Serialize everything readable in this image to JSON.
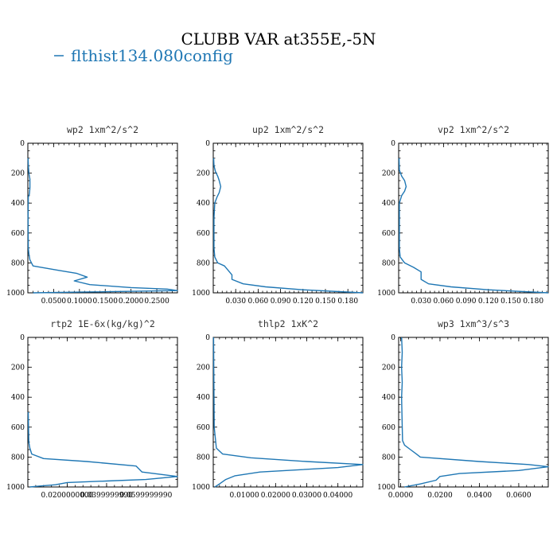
{
  "figure": {
    "title": "CLUBB VAR at355E,-5N",
    "legend": {
      "label": "flthist134.080config",
      "color": "#1f77b4"
    }
  },
  "chart_data": [
    {
      "type": "line",
      "title": "wp2  1xm^2/s^2",
      "xlabel": "",
      "ylabel": "",
      "xlim": [
        0,
        0.29
      ],
      "ylim": [
        1000,
        0
      ],
      "xticks": [
        0.05,
        0.1,
        0.15,
        0.2,
        0.25
      ],
      "xtick_labels": [
        "0.0500",
        "0.1000",
        "0.1500",
        "0.2000",
        "0.2500"
      ],
      "yticks": [
        0,
        200,
        400,
        600,
        800,
        1000
      ],
      "ytick_labels": [
        "0",
        "200",
        "400",
        "600",
        "800",
        "1000"
      ],
      "series": [
        {
          "color": "#1f77b4",
          "x": [
            0.0005,
            0.001,
            0.002,
            0.004,
            0.004,
            0.004,
            0.003,
            0.001,
            0.0005,
            0.001,
            0.002,
            0.004,
            0.01,
            0.06,
            0.095,
            0.115,
            0.09,
            0.12,
            0.2,
            0.27,
            0.29,
            0.1,
            0.01
          ],
          "y": [
            100,
            150,
            200,
            240,
            270,
            300,
            340,
            360,
            500,
            700,
            740,
            780,
            820,
            850,
            870,
            895,
            920,
            945,
            965,
            975,
            985,
            995,
            1000
          ]
        }
      ]
    },
    {
      "type": "line",
      "title": "up2  1xm^2/s^2",
      "xlabel": "",
      "ylabel": "",
      "xlim": [
        0,
        0.2
      ],
      "ylim": [
        1000,
        0
      ],
      "xticks": [
        0.03,
        0.06,
        0.09,
        0.12,
        0.15,
        0.18
      ],
      "xtick_labels": [
        "0.030",
        "0.060",
        "0.090",
        "0.120",
        "0.150",
        "0.180"
      ],
      "yticks": [
        0,
        200,
        400,
        600,
        800,
        1000
      ],
      "ytick_labels": [
        "0",
        "200",
        "400",
        "600",
        "800",
        "1000"
      ],
      "series": [
        {
          "color": "#1f77b4",
          "x": [
            0.0005,
            0.001,
            0.003,
            0.006,
            0.008,
            0.01,
            0.008,
            0.005,
            0.002,
            0.001,
            0.001,
            0.002,
            0.006,
            0.015,
            0.02,
            0.025,
            0.025,
            0.04,
            0.07,
            0.12,
            0.2
          ],
          "y": [
            100,
            150,
            190,
            220,
            250,
            290,
            330,
            360,
            400,
            500,
            700,
            760,
            800,
            820,
            850,
            880,
            910,
            940,
            960,
            980,
            1000
          ]
        }
      ]
    },
    {
      "type": "line",
      "title": "vp2  1xm^2/s^2",
      "xlabel": "",
      "ylabel": "",
      "xlim": [
        0,
        0.2
      ],
      "ylim": [
        1000,
        0
      ],
      "xticks": [
        0.03,
        0.06,
        0.09,
        0.12,
        0.15,
        0.18
      ],
      "xtick_labels": [
        "0.030",
        "0.060",
        "0.090",
        "0.120",
        "0.150",
        "0.180"
      ],
      "yticks": [
        0,
        200,
        400,
        600,
        800,
        1000
      ],
      "ytick_labels": [
        "0",
        "200",
        "400",
        "600",
        "800",
        "1000"
      ],
      "series": [
        {
          "color": "#1f77b4",
          "x": [
            0.0005,
            0.001,
            0.004,
            0.008,
            0.01,
            0.008,
            0.004,
            0.001,
            0.001,
            0.002,
            0.008,
            0.02,
            0.03,
            0.03,
            0.04,
            0.07,
            0.12,
            0.2
          ],
          "y": [
            100,
            180,
            220,
            250,
            290,
            320,
            350,
            400,
            700,
            760,
            800,
            830,
            860,
            910,
            940,
            960,
            980,
            1000
          ]
        }
      ]
    },
    {
      "type": "line",
      "title": "rtp2  1E-6x(kg/kg)^2",
      "xlabel": "",
      "ylabel": "",
      "xlim": [
        0,
        0.076
      ],
      "ylim": [
        1000,
        0
      ],
      "xticks": [
        0.02,
        0.04,
        0.06
      ],
      "xtick_labels": [
        "0.0200000000",
        "0.0399999990",
        "0.0599999990"
      ],
      "yticks": [
        0,
        200,
        400,
        600,
        800,
        1000
      ],
      "ytick_labels": [
        "0",
        "200",
        "400",
        "600",
        "800",
        "1000"
      ],
      "series": [
        {
          "color": "#1f77b4",
          "x": [
            0.0002,
            0.0005,
            0.001,
            0.002,
            0.008,
            0.03,
            0.055,
            0.058,
            0.076,
            0.06,
            0.04,
            0.02,
            0.014,
            0.005,
            0.001
          ],
          "y": [
            500,
            700,
            740,
            780,
            810,
            830,
            860,
            900,
            930,
            950,
            960,
            970,
            985,
            995,
            1000
          ]
        }
      ]
    },
    {
      "type": "line",
      "title": "thlp2  1xK^2",
      "xlabel": "",
      "ylabel": "",
      "xlim": [
        0,
        0.048
      ],
      "ylim": [
        1000,
        0
      ],
      "xticks": [
        0.01,
        0.02,
        0.03,
        0.04
      ],
      "xtick_labels": [
        "0.01000",
        "0.02000",
        "0.03000",
        "0.04000"
      ],
      "yticks": [
        0,
        200,
        400,
        600,
        800,
        1000
      ],
      "ytick_labels": [
        "0",
        "200",
        "400",
        "600",
        "800",
        "1000"
      ],
      "series": [
        {
          "color": "#1f77b4",
          "x": [
            0.0001,
            0.0003,
            0.001,
            0.003,
            0.012,
            0.03,
            0.048,
            0.04,
            0.015,
            0.007,
            0.004,
            0.002,
            0.0005
          ],
          "y": [
            0,
            600,
            740,
            780,
            805,
            830,
            850,
            870,
            900,
            925,
            950,
            980,
            1000
          ]
        }
      ]
    },
    {
      "type": "line",
      "title": "wp3  1xm^3/s^3",
      "xlabel": "",
      "ylabel": "",
      "xlim": [
        -0.001,
        0.075
      ],
      "ylim": [
        1000,
        0
      ],
      "xticks": [
        0.0,
        0.02,
        0.04,
        0.06
      ],
      "xtick_labels": [
        "0.0000",
        "0.0200",
        "0.0400",
        "0.0600"
      ],
      "yticks": [
        0,
        200,
        400,
        600,
        800,
        1000
      ],
      "ytick_labels": [
        "0",
        "200",
        "400",
        "600",
        "800",
        "1000"
      ],
      "series": [
        {
          "color": "#1f77b4",
          "x": [
            0.0005,
            0.0008,
            0.0005,
            0.0008,
            0.0005,
            0.0008,
            0.001,
            0.002,
            0.005,
            0.008,
            0.01,
            0.04,
            0.065,
            0.075,
            0.06,
            0.03,
            0.02,
            0.018,
            0.01,
            0.002
          ],
          "y": [
            0,
            100,
            200,
            300,
            400,
            600,
            690,
            720,
            750,
            780,
            800,
            830,
            850,
            865,
            890,
            910,
            930,
            955,
            980,
            1000
          ]
        }
      ]
    }
  ]
}
